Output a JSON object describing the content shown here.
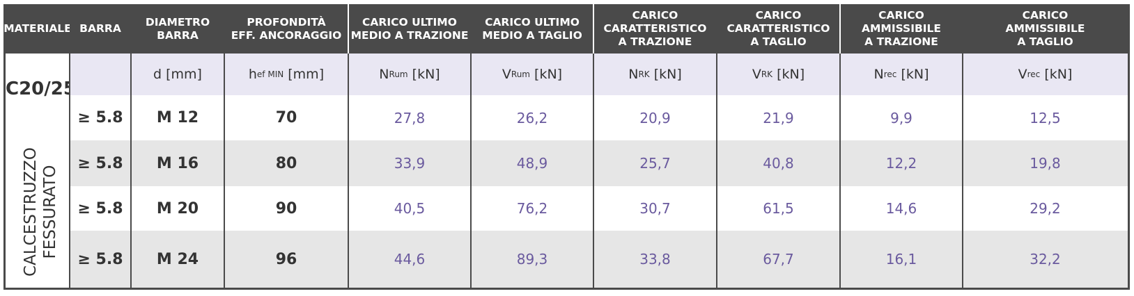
{
  "headers": {
    "materiale": "MATERIALE",
    "barra": "BARRA",
    "diametro": "DIAMETRO\nBARRA",
    "profondita": "PROFONDITÀ\nEFF. ANCORAGGIO",
    "carico_ultimo_trazione": "CARICO ULTIMO\nMEDIO A TRAZIONE",
    "carico_ultimo_taglio": "CARICO ULTIMO\nMEDIO A TAGLIO",
    "carico_caratt_trazione": "CARICO\nCARATTERISTICO\nA TRAZIONE",
    "carico_caratt_taglio": "CARICO\nCARATTERISTICO\nA TAGLIO",
    "carico_amm_trazione": "CARICO\nAMMISSIBILE\nA TRAZIONE",
    "carico_amm_taglio": "CARICO\nAMMISSIBILE\nA TAGLIO"
  },
  "symbols": {
    "d_main": "d",
    "d_unit": "[mm]",
    "hef_main": "h",
    "hef_sub": "ef MIN",
    "hef_unit": "[mm]",
    "nrum_main": "N",
    "nrum_sub": "Rum",
    "nrum_unit": "[kN]",
    "vrum_main": "V",
    "vrum_sub": "Rum",
    "vrum_unit": "[kN]",
    "nrk_main": "N",
    "nrk_sub": "RK",
    "nrk_unit": "[kN]",
    "vrk_main": "V",
    "vrk_sub": "RK",
    "vrk_unit": "[kN]",
    "nrec_main": "N",
    "nrec_sub": "rec",
    "nrec_unit": "[kN]",
    "vrec_main": "V",
    "vrec_sub": "rec",
    "vrec_unit": "[kN]"
  },
  "material": {
    "code": "C20/25",
    "description": "CALCESTRUZZO\nFESSURATO"
  },
  "rows": [
    [
      "≥ 5.8",
      "M 12",
      "70",
      "27,8",
      "26,2",
      "20,9",
      "21,9",
      "9,9",
      "12,5"
    ],
    [
      "≥ 5.8",
      "M 16",
      "80",
      "33,9",
      "48,9",
      "25,7",
      "40,8",
      "12,2",
      "19,8"
    ],
    [
      "≥ 5.8",
      "M 20",
      "90",
      "40,5",
      "76,2",
      "30,7",
      "61,5",
      "14,6",
      "29,2"
    ],
    [
      "≥ 5.8",
      "M 24",
      "96",
      "44,6",
      "89,3",
      "33,8",
      "67,7",
      "16,1",
      "32,2"
    ]
  ]
}
